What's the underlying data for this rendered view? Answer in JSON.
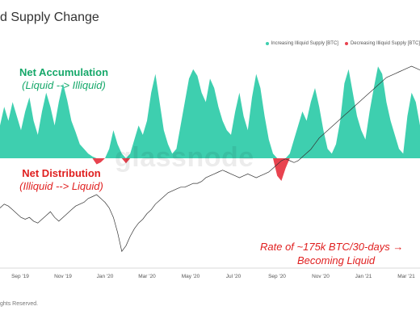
{
  "title": "d Supply Change",
  "legend": {
    "items": [
      {
        "label": "Increasing Illiquid Supply [BTC]",
        "color": "#3ecfaf"
      },
      {
        "label": "Decreasing Illiquid Supply [BTC]",
        "color": "#e8434f"
      }
    ]
  },
  "annotations": {
    "accumulation": {
      "line1": "Net Accumulation",
      "line2": "(Liquid --> Illiquid)"
    },
    "distribution": {
      "line1": "Net Distribution",
      "line2": "(Illiquid --> Liquid)"
    },
    "rate": {
      "line1": "Rate of ~175k BTC/30-days →",
      "line2": "Becoming Liquid"
    }
  },
  "watermark": "glassnode",
  "footer": "ghts Reserved.",
  "chart_data": {
    "type": "area",
    "x_labels": [
      "Sep '19",
      "Nov '19",
      "Jan '20",
      "Mar '20",
      "May '20",
      "Jul '20",
      "Sep '20",
      "Nov '20",
      "Jan '21",
      "Mar '21"
    ],
    "series": [
      {
        "name": "Increasing Illiquid Supply [BTC]",
        "color": "#3ecfaf",
        "values": [
          0.35,
          0.55,
          0.4,
          0.6,
          0.45,
          0.3,
          0.5,
          0.65,
          0.4,
          0.25,
          0.5,
          0.7,
          0.55,
          0.35,
          0.6,
          0.8,
          0.62,
          0.4,
          0.28,
          0.15,
          0.1,
          0.05,
          0.02,
          0,
          0,
          0,
          0.1,
          0.3,
          0.15,
          0.05,
          0,
          0.05,
          0.2,
          0.35,
          0.25,
          0.4,
          0.7,
          0.9,
          0.6,
          0.3,
          0.15,
          0.05,
          0.1,
          0.35,
          0.6,
          0.85,
          0.95,
          0.88,
          0.7,
          0.6,
          0.85,
          0.75,
          0.55,
          0.4,
          0.3,
          0.25,
          0.5,
          0.7,
          0.45,
          0.3,
          0.65,
          0.9,
          0.75,
          0.45,
          0.2,
          0.05,
          0,
          0,
          0,
          0.05,
          0.2,
          0.35,
          0.5,
          0.4,
          0.6,
          0.75,
          0.55,
          0.3,
          0.1,
          0.05,
          0.15,
          0.4,
          0.8,
          0.95,
          0.7,
          0.45,
          0.3,
          0.2,
          0.5,
          0.75,
          0.98,
          0.9,
          0.6,
          0.4,
          0.25,
          0.1,
          0.05,
          0.45,
          0.7,
          0.6,
          0.35
        ]
      },
      {
        "name": "Decreasing Illiquid Supply [BTC]",
        "color": "#e8434f",
        "values": [
          0,
          0,
          0,
          0,
          0,
          0,
          0,
          0,
          0,
          0,
          0,
          0,
          0,
          0,
          0,
          0,
          0,
          0,
          0,
          0,
          0,
          0,
          0,
          0.12,
          0.08,
          0,
          0,
          0,
          0,
          0,
          0.1,
          0,
          0,
          0,
          0,
          0,
          0,
          0,
          0,
          0,
          0,
          0,
          0,
          0,
          0,
          0,
          0,
          0,
          0,
          0,
          0,
          0,
          0,
          0,
          0,
          0,
          0,
          0,
          0,
          0,
          0,
          0,
          0,
          0,
          0,
          0,
          0.35,
          0.45,
          0.2,
          0,
          0,
          0,
          0,
          0,
          0,
          0,
          0,
          0,
          0,
          0,
          0,
          0,
          0,
          0,
          0,
          0,
          0,
          0,
          0,
          0,
          0,
          0,
          0,
          0,
          0,
          0,
          0,
          0,
          0,
          0,
          0
        ]
      },
      {
        "name": "BTC Price",
        "color": "#333333",
        "values": [
          0.25,
          0.27,
          0.26,
          0.24,
          0.22,
          0.2,
          0.19,
          0.2,
          0.18,
          0.17,
          0.19,
          0.21,
          0.23,
          0.2,
          0.18,
          0.2,
          0.22,
          0.24,
          0.26,
          0.27,
          0.28,
          0.3,
          0.31,
          0.32,
          0.3,
          0.28,
          0.25,
          0.2,
          0.12,
          0.02,
          0.05,
          0.1,
          0.14,
          0.17,
          0.19,
          0.22,
          0.24,
          0.27,
          0.29,
          0.31,
          0.33,
          0.34,
          0.35,
          0.36,
          0.36,
          0.37,
          0.38,
          0.38,
          0.39,
          0.41,
          0.42,
          0.43,
          0.44,
          0.45,
          0.44,
          0.43,
          0.42,
          0.41,
          0.42,
          0.43,
          0.42,
          0.41,
          0.42,
          0.43,
          0.44,
          0.46,
          0.48,
          0.5,
          0.51,
          0.5,
          0.49,
          0.5,
          0.52,
          0.54,
          0.56,
          0.59,
          0.62,
          0.64,
          0.66,
          0.68,
          0.7,
          0.72,
          0.74,
          0.76,
          0.78,
          0.8,
          0.82,
          0.84,
          0.86,
          0.88,
          0.9,
          0.92,
          0.94,
          0.95,
          0.96,
          0.97,
          0.98,
          0.99,
          1.0,
          0.99,
          0.98
        ]
      }
    ]
  }
}
